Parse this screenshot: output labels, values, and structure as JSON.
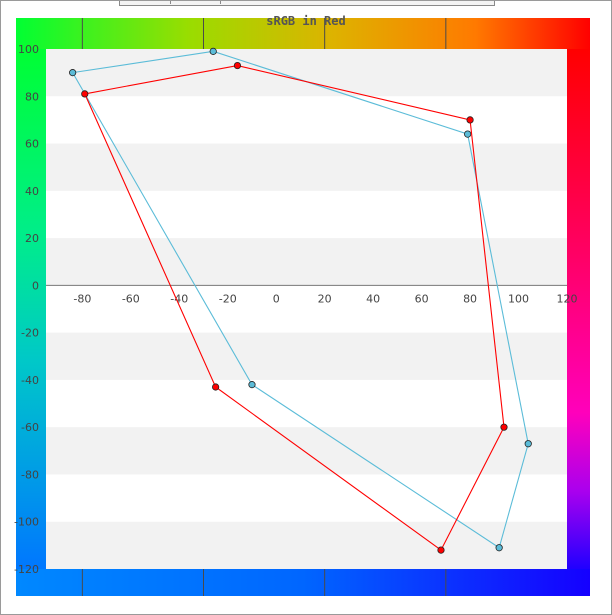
{
  "chart_data": {
    "type": "line",
    "title": "sRGB in Red",
    "xlabel": "",
    "ylabel": "",
    "xlim": [
      -95,
      120
    ],
    "ylim": [
      -120,
      100
    ],
    "x_ticks": [
      -80,
      -60,
      -40,
      -20,
      0,
      20,
      40,
      60,
      80,
      100,
      120
    ],
    "y_ticks": [
      100,
      80,
      60,
      40,
      20,
      0,
      -20,
      -40,
      -60,
      -80,
      -100,
      -120
    ],
    "grid": "horizontal alternating bands",
    "series": [
      {
        "color": "#5bbcd8",
        "points": [
          [
            -84,
            90
          ],
          [
            -26,
            99
          ],
          [
            79,
            64
          ],
          [
            104,
            -67
          ],
          [
            92,
            -111
          ],
          [
            -10,
            -42
          ],
          [
            -84,
            90
          ]
        ]
      },
      {
        "color": "#ff0000",
        "points": [
          [
            -79,
            81
          ],
          [
            -16,
            93
          ],
          [
            80,
            70
          ],
          [
            94,
            -60
          ],
          [
            68,
            -112
          ],
          [
            -25,
            -43
          ],
          [
            -79,
            81
          ]
        ]
      }
    ]
  }
}
